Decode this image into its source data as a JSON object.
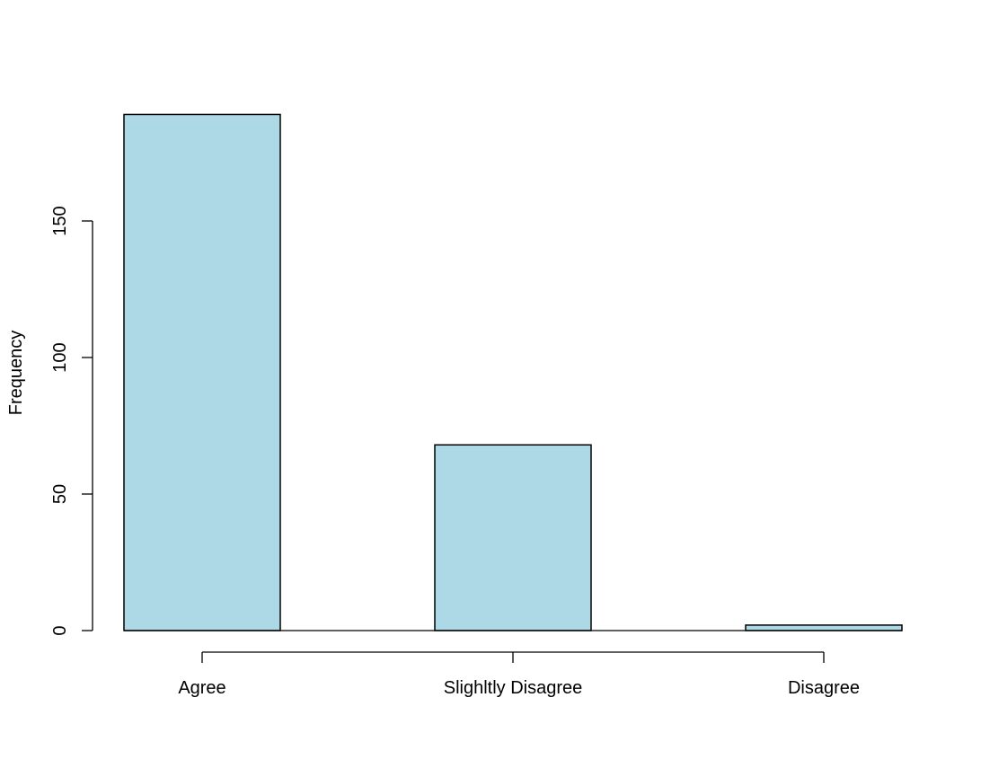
{
  "chart_data": {
    "type": "bar",
    "title": "",
    "xlabel": "",
    "ylabel": "Frequency",
    "categories": [
      "Agree",
      "Slighltly Disagree",
      "Disagree"
    ],
    "values": [
      189,
      68,
      2
    ],
    "ylim": [
      0,
      190
    ],
    "yticks": [
      0,
      50,
      100,
      150
    ],
    "grid": false,
    "legend": "none",
    "bar_color": "#add8e6",
    "border_color": "#000000"
  }
}
